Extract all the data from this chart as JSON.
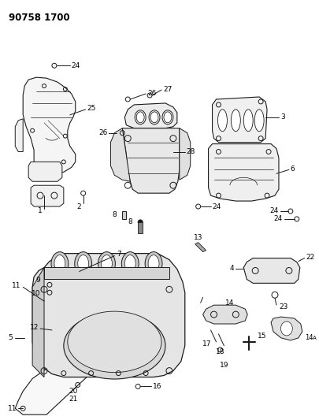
{
  "title": "90758 1700",
  "bg_color": "#ffffff",
  "line_color": "#1a1a1a",
  "title_fontsize": 8.5,
  "label_fontsize": 6.5,
  "figsize": [
    4.06,
    5.33
  ],
  "dpi": 100
}
